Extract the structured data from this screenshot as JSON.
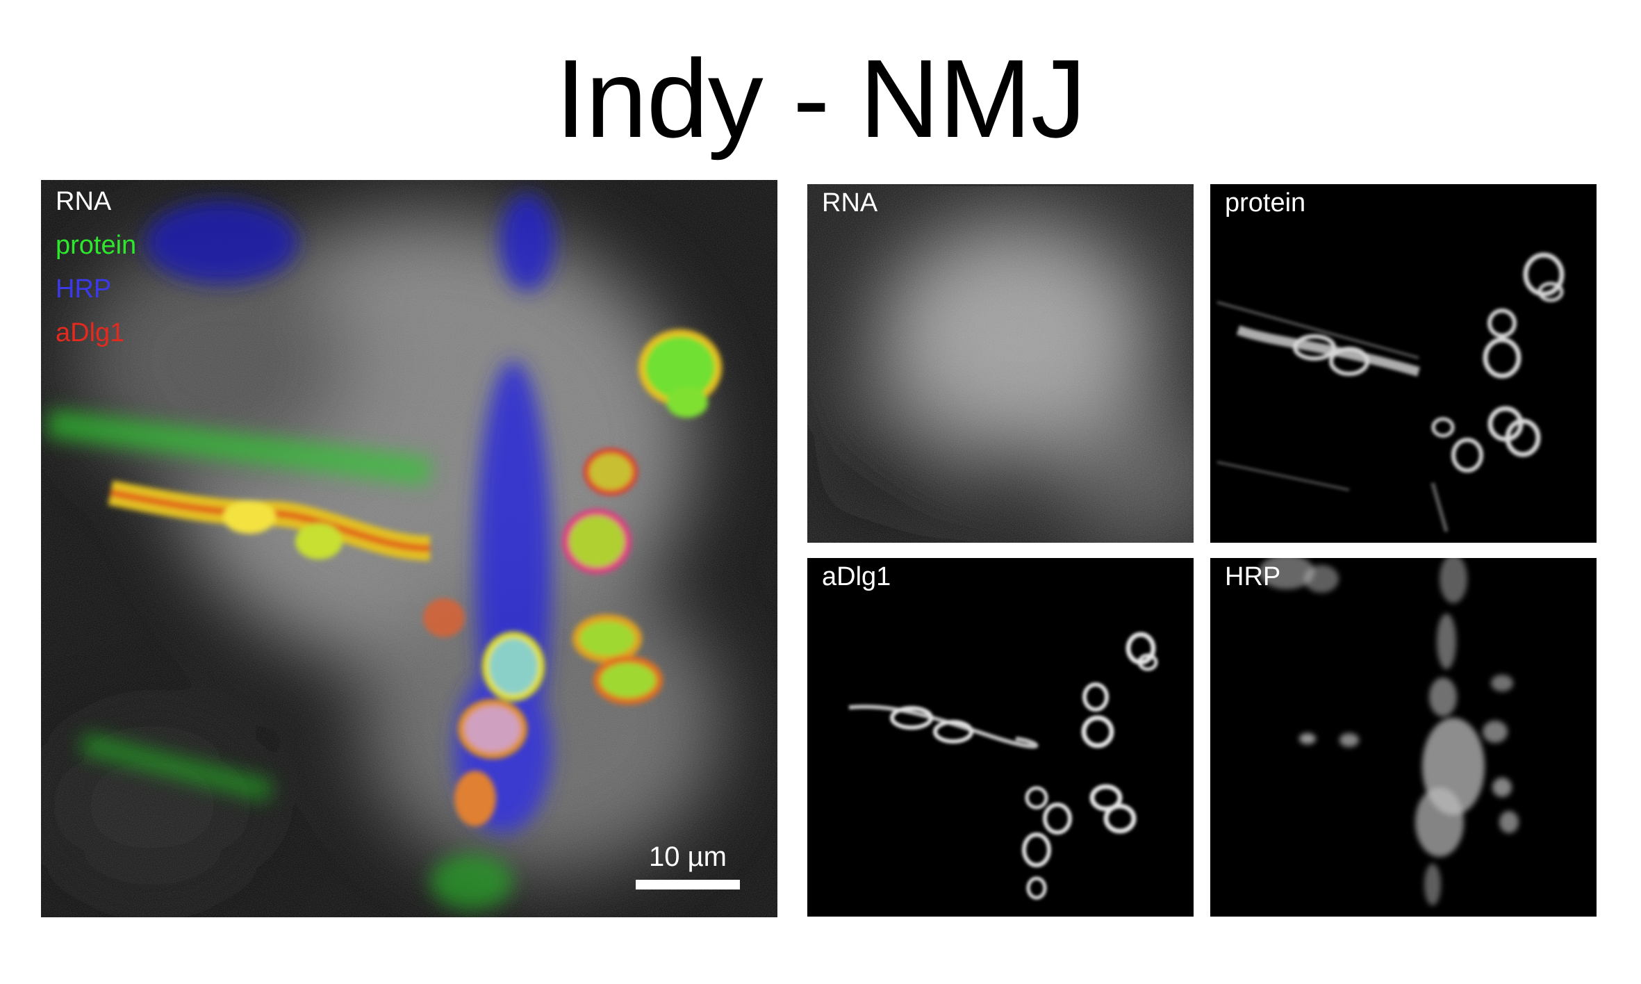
{
  "title": "Indy - NMJ",
  "merged_panel": {
    "legend": [
      {
        "label": "RNA",
        "color": "#ffffff"
      },
      {
        "label": "protein",
        "color": "#2ee82e"
      },
      {
        "label": "HRP",
        "color": "#2a2ad8"
      },
      {
        "label": "aDlg1",
        "color": "#e22a1e"
      }
    ],
    "scale_bar_label": "10 µm"
  },
  "channel_panels": {
    "rna": "RNA",
    "protein": "protein",
    "adlg1": "aDlg1",
    "hrp": "HRP"
  }
}
